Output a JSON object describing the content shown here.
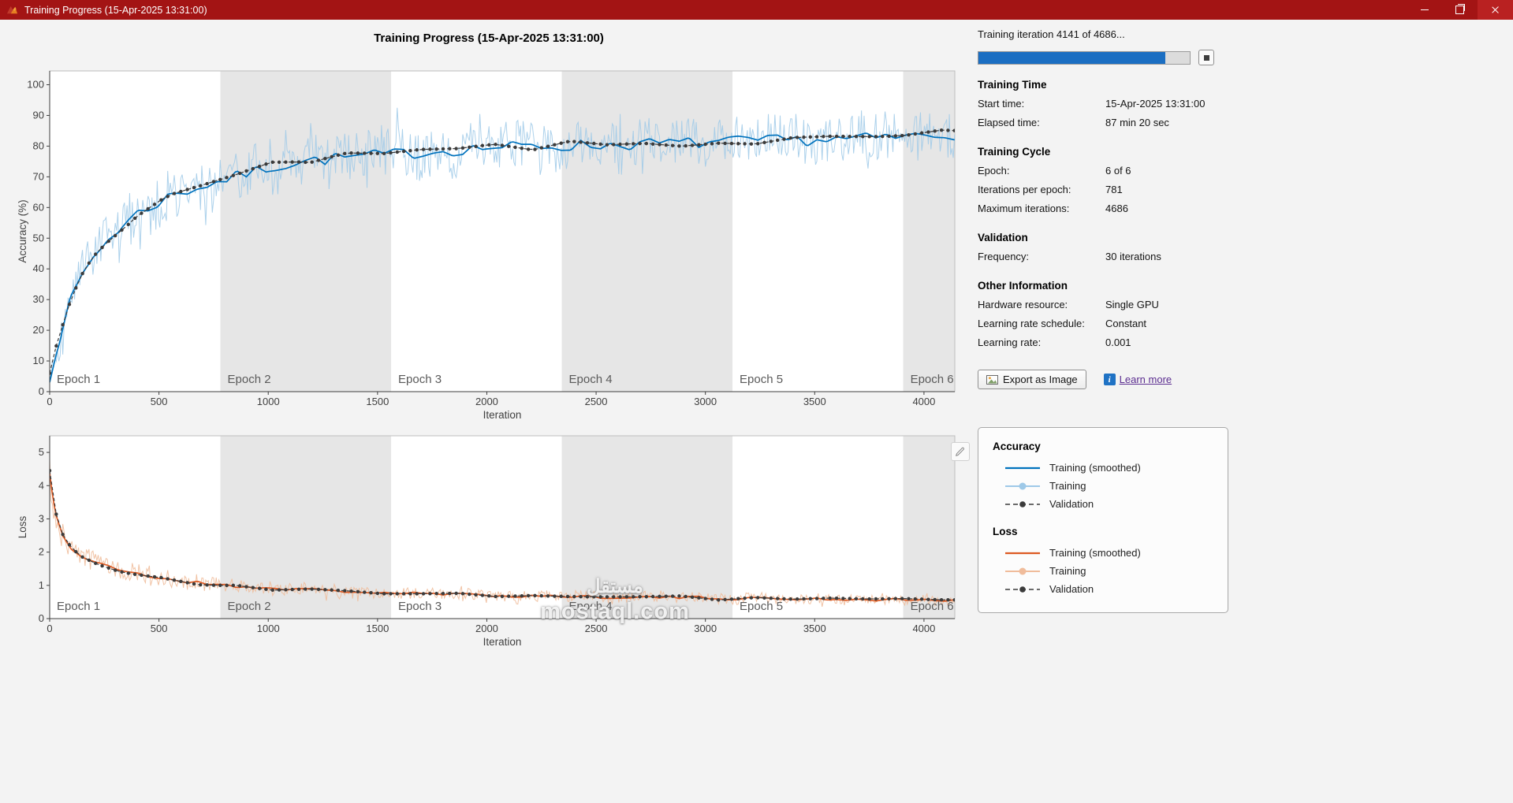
{
  "window": {
    "title": "Training Progress (15-Apr-2025 13:31:00)"
  },
  "figure": {
    "title": "Training Progress (15-Apr-2025 13:31:00)"
  },
  "icons": {
    "info": "i"
  },
  "colors": {
    "titlebar": "#a31414",
    "progress": "#1b6ec2",
    "accuracy_line": "#0072bd",
    "accuracy_raw": "#9ec9e8",
    "loss_line": "#dd5a23",
    "loss_raw": "#f0bc9b",
    "validation": "#3b3b3b",
    "epoch_band": "#e6e6e6"
  },
  "panel": {
    "iteration_label": "Training iteration 4141 of 4686...",
    "progress_percent": 88.4,
    "sections": [
      {
        "heading": "Training Time",
        "rows": [
          {
            "label": "Start time:",
            "value": "15-Apr-2025 13:31:00"
          },
          {
            "label": "Elapsed time:",
            "value": "87 min 20 sec"
          }
        ]
      },
      {
        "heading": "Training Cycle",
        "rows": [
          {
            "label": "Epoch:",
            "value": "6 of 6"
          },
          {
            "label": "Iterations per epoch:",
            "value": "781"
          },
          {
            "label": "Maximum iterations:",
            "value": "4686"
          }
        ]
      },
      {
        "heading": "Validation",
        "rows": [
          {
            "label": "Frequency:",
            "value": "30 iterations"
          }
        ]
      },
      {
        "heading": "Other Information",
        "rows": [
          {
            "label": "Hardware resource:",
            "value": "Single GPU"
          },
          {
            "label": "Learning rate schedule:",
            "value": "Constant"
          },
          {
            "label": "Learning rate:",
            "value": "0.001"
          }
        ]
      }
    ],
    "export_button": "Export as Image",
    "learn_more": "Learn more"
  },
  "legend": {
    "accuracy_heading": "Accuracy",
    "loss_heading": "Loss",
    "accuracy_entries": [
      {
        "label": "Training (smoothed)",
        "style": "solid",
        "color": "#0072bd"
      },
      {
        "label": "Training",
        "style": "solid-marker",
        "color": "#9ec9e8"
      },
      {
        "label": "Validation",
        "style": "dash-marker",
        "color": "#3b3b3b"
      }
    ],
    "loss_entries": [
      {
        "label": "Training (smoothed)",
        "style": "solid",
        "color": "#dd5a23"
      },
      {
        "label": "Training",
        "style": "solid-marker",
        "color": "#f0bc9b"
      },
      {
        "label": "Validation",
        "style": "dash-marker",
        "color": "#3b3b3b"
      }
    ]
  },
  "watermark": {
    "line1": "مستقل",
    "line2": "mostaql.com"
  },
  "chart_data": [
    {
      "id": "accuracy",
      "type": "line",
      "title": "Training Progress (15-Apr-2025 13:31:00)",
      "xlabel": "Iteration",
      "ylabel": "Accuracy (%)",
      "xlim": [
        0,
        4141
      ],
      "ylim": [
        0,
        104.5
      ],
      "xticks": [
        0,
        500,
        1000,
        1500,
        2000,
        2500,
        3000,
        3500,
        4000
      ],
      "yticks": [
        0,
        10,
        20,
        30,
        40,
        50,
        60,
        70,
        80,
        90,
        100
      ],
      "epoch_size": 781,
      "epoch_labels": [
        "Epoch 1",
        "Epoch 2",
        "Epoch 3",
        "Epoch 4",
        "Epoch 5",
        "Epoch 6"
      ],
      "validation_frequency": 30,
      "clamp": [
        1,
        100
      ],
      "seed": 7,
      "keypoints": [
        [
          0,
          5
        ],
        [
          30,
          14
        ],
        [
          60,
          21
        ],
        [
          100,
          30
        ],
        [
          150,
          38
        ],
        [
          200,
          44
        ],
        [
          260,
          49
        ],
        [
          330,
          54
        ],
        [
          400,
          58
        ],
        [
          480,
          61
        ],
        [
          560,
          64
        ],
        [
          650,
          66
        ],
        [
          750,
          68
        ],
        [
          850,
          70
        ],
        [
          1000,
          73
        ],
        [
          1150,
          75
        ],
        [
          1300,
          76
        ],
        [
          1500,
          77
        ],
        [
          1700,
          78
        ],
        [
          2000,
          79.5
        ],
        [
          2300,
          80
        ],
        [
          2600,
          80.5
        ],
        [
          2900,
          81
        ],
        [
          3200,
          81.5
        ],
        [
          3500,
          82
        ],
        [
          3800,
          82.5
        ],
        [
          4141,
          84
        ]
      ],
      "series": {
        "raw": {
          "name": "Training",
          "color": "#9ec9e8",
          "opacity": 0.85,
          "step": 6,
          "noise": [
            [
              0,
              4
            ],
            [
              150,
              8
            ],
            [
              400,
              9
            ],
            [
              800,
              8
            ],
            [
              1500,
              8
            ],
            [
              2500,
              7.5
            ],
            [
              4141,
              8
            ]
          ]
        },
        "smoothed": {
          "name": "Training (smoothed)",
          "color": "#0072bd",
          "noise_amp": 2.0
        },
        "validation": {
          "name": "Validation",
          "color": "#3b3b3b",
          "noise_amp": 1.5
        }
      }
    },
    {
      "id": "loss",
      "type": "line",
      "title": "",
      "xlabel": "Iteration",
      "ylabel": "Loss",
      "xlim": [
        0,
        4141
      ],
      "ylim": [
        0,
        5.5
      ],
      "xticks": [
        0,
        500,
        1000,
        1500,
        2000,
        2500,
        3000,
        3500,
        4000
      ],
      "yticks": [
        0,
        1,
        2,
        3,
        4,
        5
      ],
      "epoch_size": 781,
      "epoch_labels": [
        "Epoch 1",
        "Epoch 2",
        "Epoch 3",
        "Epoch 4",
        "Epoch 5",
        "Epoch 6"
      ],
      "validation_frequency": 30,
      "clamp": [
        0.04,
        5.4
      ],
      "seed": 21,
      "keypoints": [
        [
          0,
          4.4
        ],
        [
          15,
          3.6
        ],
        [
          30,
          3.1
        ],
        [
          60,
          2.5
        ],
        [
          100,
          2.1
        ],
        [
          150,
          1.85
        ],
        [
          220,
          1.65
        ],
        [
          300,
          1.5
        ],
        [
          400,
          1.35
        ],
        [
          500,
          1.22
        ],
        [
          650,
          1.1
        ],
        [
          800,
          1.0
        ],
        [
          1000,
          0.92
        ],
        [
          1250,
          0.85
        ],
        [
          1500,
          0.78
        ],
        [
          1800,
          0.73
        ],
        [
          2100,
          0.69
        ],
        [
          2500,
          0.66
        ],
        [
          2900,
          0.63
        ],
        [
          3300,
          0.6
        ],
        [
          3700,
          0.58
        ],
        [
          4141,
          0.55
        ]
      ],
      "series": {
        "raw": {
          "name": "Training",
          "color": "#f0bc9b",
          "opacity": 0.9,
          "step": 6,
          "noise": [
            [
              0,
              0.6
            ],
            [
              100,
              0.4
            ],
            [
              300,
              0.3
            ],
            [
              600,
              0.25
            ],
            [
              1000,
              0.2
            ],
            [
              2000,
              0.17
            ],
            [
              4141,
              0.15
            ]
          ]
        },
        "smoothed": {
          "name": "Training (smoothed)",
          "color": "#dd5a23",
          "noise_amp": 0.05
        },
        "validation": {
          "name": "Validation",
          "color": "#3b3b3b",
          "noise_amp": 0.06
        }
      }
    }
  ]
}
